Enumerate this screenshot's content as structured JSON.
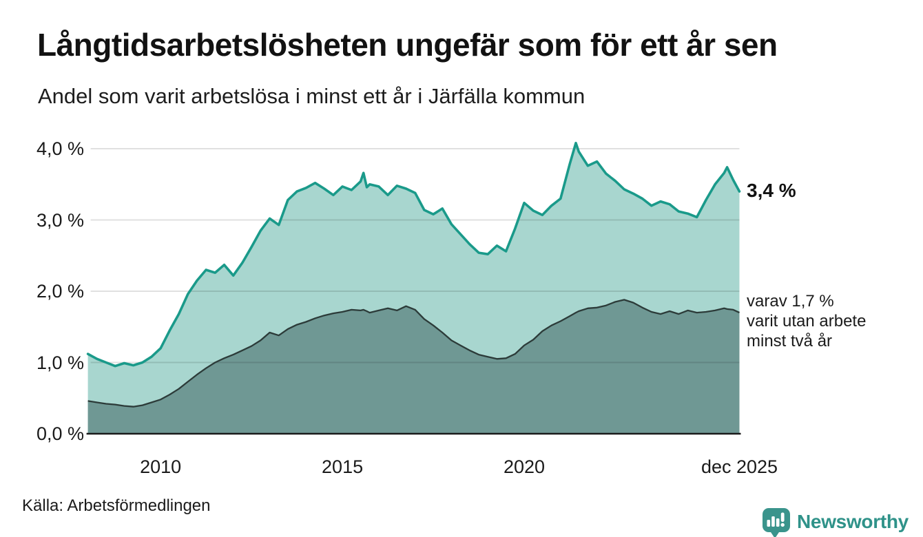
{
  "header": {
    "title": "Långtidsarbetslösheten ungefär som för ett år sen",
    "subtitle": "Andel som varit arbetslösa i minst ett år i Järfälla kommun"
  },
  "chart_data": {
    "type": "area",
    "title": "Långtidsarbetslösheten ungefär som för ett år sen",
    "subtitle": "Andel som varit arbetslösa i minst ett år i Järfälla kommun",
    "x_unit": "year (monthly series)",
    "x_range": [
      2008,
      2025.92
    ],
    "y_range": [
      0,
      4.0
    ],
    "grid": "horizontal",
    "legend": "inline-end-labels",
    "x": [
      2008,
      2008.25,
      2008.5,
      2008.75,
      2009,
      2009.25,
      2009.5,
      2009.75,
      2010,
      2010.25,
      2010.5,
      2010.75,
      2011,
      2011.25,
      2011.5,
      2011.75,
      2012,
      2012.25,
      2012.5,
      2012.75,
      2013,
      2013.25,
      2013.5,
      2013.75,
      2014,
      2014.25,
      2014.5,
      2014.75,
      2015,
      2015.25,
      2015.5,
      2015.58,
      2015.67,
      2015.75,
      2016,
      2016.25,
      2016.5,
      2016.75,
      2017,
      2017.25,
      2017.5,
      2017.75,
      2018,
      2018.25,
      2018.5,
      2018.75,
      2019,
      2019.25,
      2019.5,
      2019.75,
      2020,
      2020.25,
      2020.5,
      2020.75,
      2021,
      2021.25,
      2021.42,
      2021.5,
      2021.75,
      2022,
      2022.25,
      2022.5,
      2022.75,
      2023,
      2023.25,
      2023.5,
      2023.75,
      2024,
      2024.25,
      2024.5,
      2024.75,
      2025,
      2025.25,
      2025.5,
      2025.58,
      2025.75,
      2025.92
    ],
    "series": [
      {
        "name": "Andel arbetslösa minst ett år",
        "end_value_label": "3,4 %",
        "end_value": 3.4,
        "line_color": "#1a9a8a",
        "fill_color": "#a8d6cf",
        "values": [
          1.12,
          1.05,
          1.0,
          0.95,
          0.99,
          0.96,
          1.0,
          1.08,
          1.2,
          1.45,
          1.68,
          1.96,
          2.15,
          2.3,
          2.26,
          2.37,
          2.22,
          2.4,
          2.62,
          2.85,
          3.02,
          2.93,
          3.28,
          3.4,
          3.45,
          3.52,
          3.44,
          3.35,
          3.47,
          3.42,
          3.54,
          3.66,
          3.46,
          3.5,
          3.47,
          3.35,
          3.48,
          3.44,
          3.38,
          3.14,
          3.08,
          3.16,
          2.94,
          2.8,
          2.66,
          2.54,
          2.52,
          2.64,
          2.56,
          2.88,
          3.24,
          3.13,
          3.07,
          3.2,
          3.3,
          3.78,
          4.08,
          3.96,
          3.76,
          3.82,
          3.65,
          3.55,
          3.43,
          3.37,
          3.3,
          3.2,
          3.26,
          3.22,
          3.12,
          3.09,
          3.04,
          3.28,
          3.5,
          3.66,
          3.74,
          3.56,
          3.4
        ]
      },
      {
        "name": "varav utan arbete minst två år",
        "end_value_label": "varav 1,7 %\nvarit utan arbete\nminst två år",
        "end_value": 1.7,
        "line_color": "#2c3b39",
        "fill_color": "#6f9894",
        "values": [
          0.46,
          0.44,
          0.42,
          0.41,
          0.39,
          0.38,
          0.4,
          0.44,
          0.48,
          0.55,
          0.63,
          0.73,
          0.83,
          0.92,
          1.0,
          1.06,
          1.11,
          1.17,
          1.23,
          1.31,
          1.42,
          1.38,
          1.47,
          1.53,
          1.57,
          1.62,
          1.66,
          1.69,
          1.71,
          1.74,
          1.73,
          1.74,
          1.72,
          1.7,
          1.73,
          1.76,
          1.73,
          1.79,
          1.74,
          1.61,
          1.52,
          1.42,
          1.31,
          1.24,
          1.17,
          1.11,
          1.08,
          1.05,
          1.06,
          1.12,
          1.24,
          1.32,
          1.44,
          1.52,
          1.58,
          1.65,
          1.7,
          1.72,
          1.76,
          1.77,
          1.8,
          1.85,
          1.88,
          1.84,
          1.77,
          1.71,
          1.68,
          1.72,
          1.68,
          1.73,
          1.7,
          1.71,
          1.73,
          1.76,
          1.75,
          1.74,
          1.7
        ]
      }
    ],
    "x_ticks": [
      {
        "label": "2010",
        "year": 2010
      },
      {
        "label": "2015",
        "year": 2015
      },
      {
        "label": "2020",
        "year": 2020
      },
      {
        "label": "dec 2025",
        "year": 2025.92
      }
    ],
    "y_ticks": [
      {
        "label": "4,0 %",
        "value": 4.0
      },
      {
        "label": "3,0 %",
        "value": 3.0
      },
      {
        "label": "2,0 %",
        "value": 2.0
      },
      {
        "label": "1,0 %",
        "value": 1.0
      },
      {
        "label": "0,0 %",
        "value": 0.0
      }
    ]
  },
  "annotations": {
    "end_label": "3,4 %",
    "share_label": "varav 1,7 %\nvarit utan arbete\nminst två år"
  },
  "footer": {
    "source": "Källa: Arbetsförmedlingen",
    "brand": "Newsworthy"
  },
  "colors": {
    "line_total": "#1a9a8a",
    "fill_total": "#a8d6cf",
    "line_two_years": "#2c3b39",
    "fill_two_years": "#6f9894",
    "gridline": "#e0e0e0",
    "axis": "#1a1a1a",
    "brand_teal": "#359builder"
  }
}
